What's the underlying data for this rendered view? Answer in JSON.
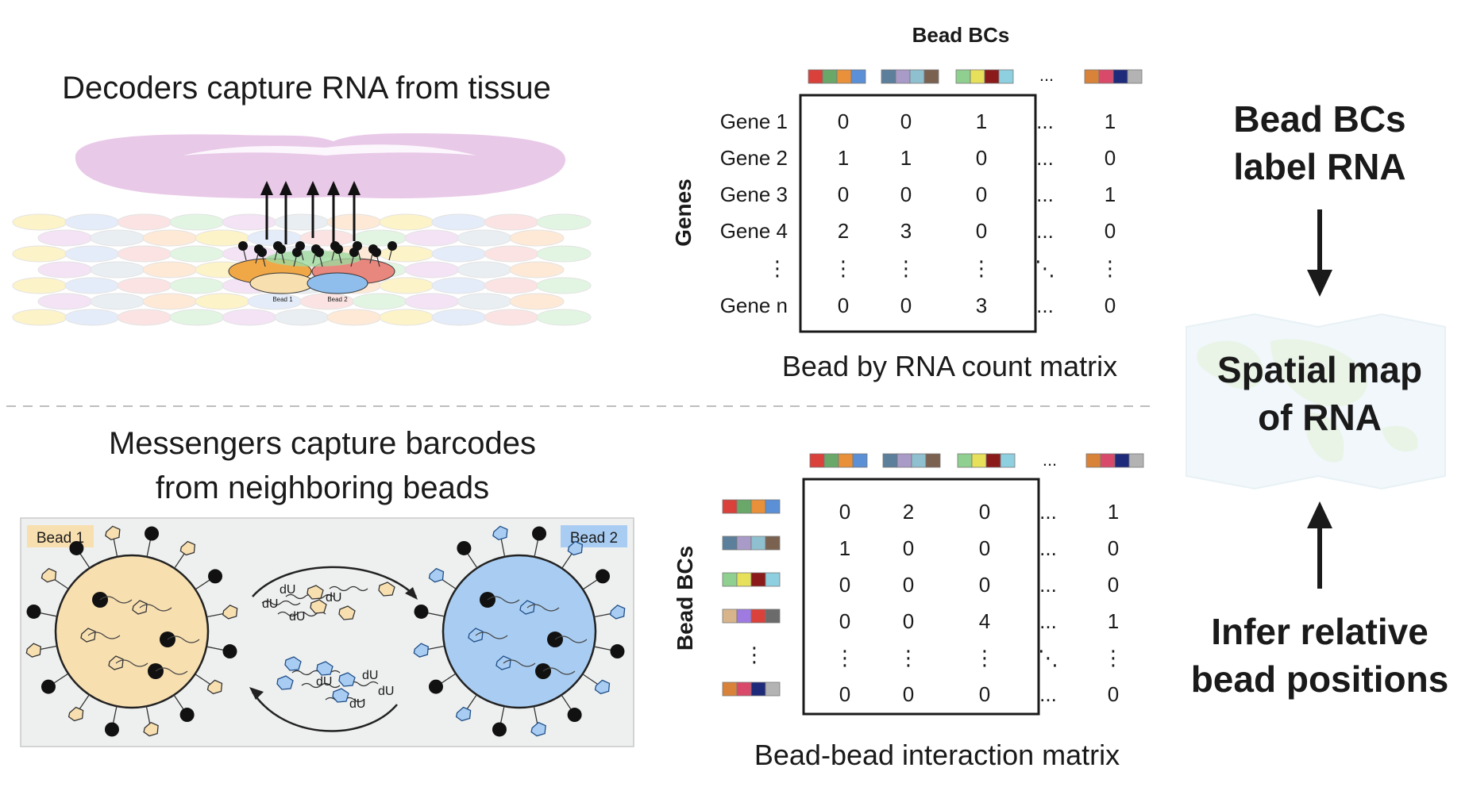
{
  "top_panel": {
    "title": "Decoders capture RNA from tissue",
    "bead1_tag": "Bead 1",
    "bead2_tag": "Bead 2"
  },
  "bottom_panel": {
    "title_line1": "Messengers capture barcodes",
    "title_line2": "from neighboring beads",
    "bead1_label": "Bead 1",
    "bead2_label": "Bead 2",
    "du_label": "dU"
  },
  "count_matrix": {
    "column_header": "Bead BCs",
    "row_axis_label": "Genes",
    "caption": "Bead by RNA count matrix",
    "rows": [
      {
        "label": "Gene 1",
        "cells": [
          "0",
          "0",
          "1",
          "...",
          "1"
        ]
      },
      {
        "label": "Gene 2",
        "cells": [
          "1",
          "1",
          "0",
          "...",
          "0"
        ]
      },
      {
        "label": "Gene 3",
        "cells": [
          "0",
          "0",
          "0",
          "...",
          "1"
        ]
      },
      {
        "label": "Gene 4",
        "cells": [
          "2",
          "3",
          "0",
          "...",
          "0"
        ]
      },
      {
        "label": "⋮",
        "cells": [
          "⋮",
          "⋮",
          "⋮",
          "⋱",
          "⋮"
        ]
      },
      {
        "label": "Gene n",
        "cells": [
          "0",
          "0",
          "3",
          "...",
          "0"
        ]
      }
    ],
    "column_ellipsis": "..."
  },
  "interaction_matrix": {
    "row_axis_label": "Bead BCs",
    "caption": "Bead-bead interaction matrix",
    "rows": [
      {
        "cells": [
          "0",
          "2",
          "0",
          "...",
          "1"
        ]
      },
      {
        "cells": [
          "1",
          "0",
          "0",
          "...",
          "0"
        ]
      },
      {
        "cells": [
          "0",
          "0",
          "0",
          "...",
          "0"
        ]
      },
      {
        "cells": [
          "0",
          "0",
          "4",
          "...",
          "1"
        ]
      },
      {
        "cells": [
          "⋮",
          "⋮",
          "⋮",
          "⋱",
          "⋮"
        ]
      },
      {
        "cells": [
          "0",
          "0",
          "0",
          "...",
          "0"
        ]
      }
    ],
    "row_ellipsis": "⋮",
    "column_ellipsis": "..."
  },
  "barcodes": [
    [
      "#d9413a",
      "#6aa86a",
      "#e8903a",
      "#5b8fd6"
    ],
    [
      "#5c7f9c",
      "#a99bc8",
      "#8fc0cf",
      "#7b6250"
    ],
    [
      "#8fcf8f",
      "#e6e05a",
      "#8b1a1a",
      "#8fd0e0"
    ],
    [
      "#d9823a",
      "#d94a6a",
      "#1e2a7a",
      "#b3b3b3"
    ]
  ],
  "barcode_row4": [
    "#d8b48a",
    "#9f7ae0",
    "#d9413a",
    "#6b6b6b"
  ],
  "right_flow": {
    "top_line1": "Bead BCs",
    "top_line2": "label RNA",
    "center_line1": "Spatial map",
    "center_line2": "of RNA",
    "bottom_line1": "Infer relative",
    "bottom_line2": "bead positions"
  },
  "colors": {
    "tissue": "#e7c3e6",
    "bead1_fill": "#f8dfb0",
    "bead2_fill": "#a9cdf2",
    "panel_bg": "#eef0ef",
    "divider": "#bdbdbd"
  }
}
